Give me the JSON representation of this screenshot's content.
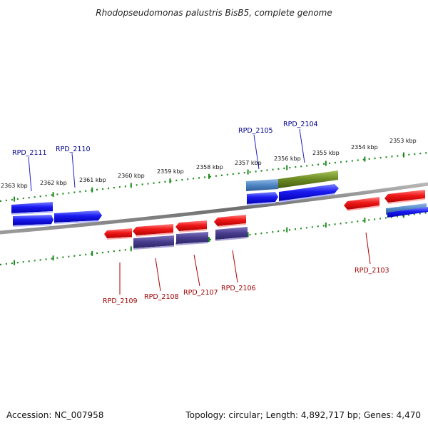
{
  "title": "Rhodopseudomonas palustris BisB5, complete genome",
  "scale_labels": [
    "2363 kbp",
    "2362 kbp",
    "2361 kbp",
    "2360 kbp",
    "2359 kbp",
    "2358 kbp",
    "2357 kbp",
    "2356 kbp",
    "2355 kbp",
    "2354 kbp",
    "2353 kbp"
  ],
  "genes_top": [
    "RPD_2111",
    "RPD_2110",
    "RPD_2105",
    "RPD_2104"
  ],
  "genes_bottom": [
    "RPD_2109",
    "RPD_2108",
    "RPD_2107",
    "RPD_2106",
    "RPD_2103"
  ],
  "footer": {
    "accession": "Accession: NC_007958",
    "summary": "Topology: circular; Length: 4,892,717 bp; Genes: 4,470"
  },
  "colors": {
    "forward_gene": "#1010ee",
    "reverse_gene": "#ee1010",
    "purple_feature": "#4a3f90",
    "steelblue_feature": "#4f86c4",
    "olive_feature": "#6b8a22",
    "backbone": "#7a7a7a",
    "ticks": "#1c8a1c"
  }
}
